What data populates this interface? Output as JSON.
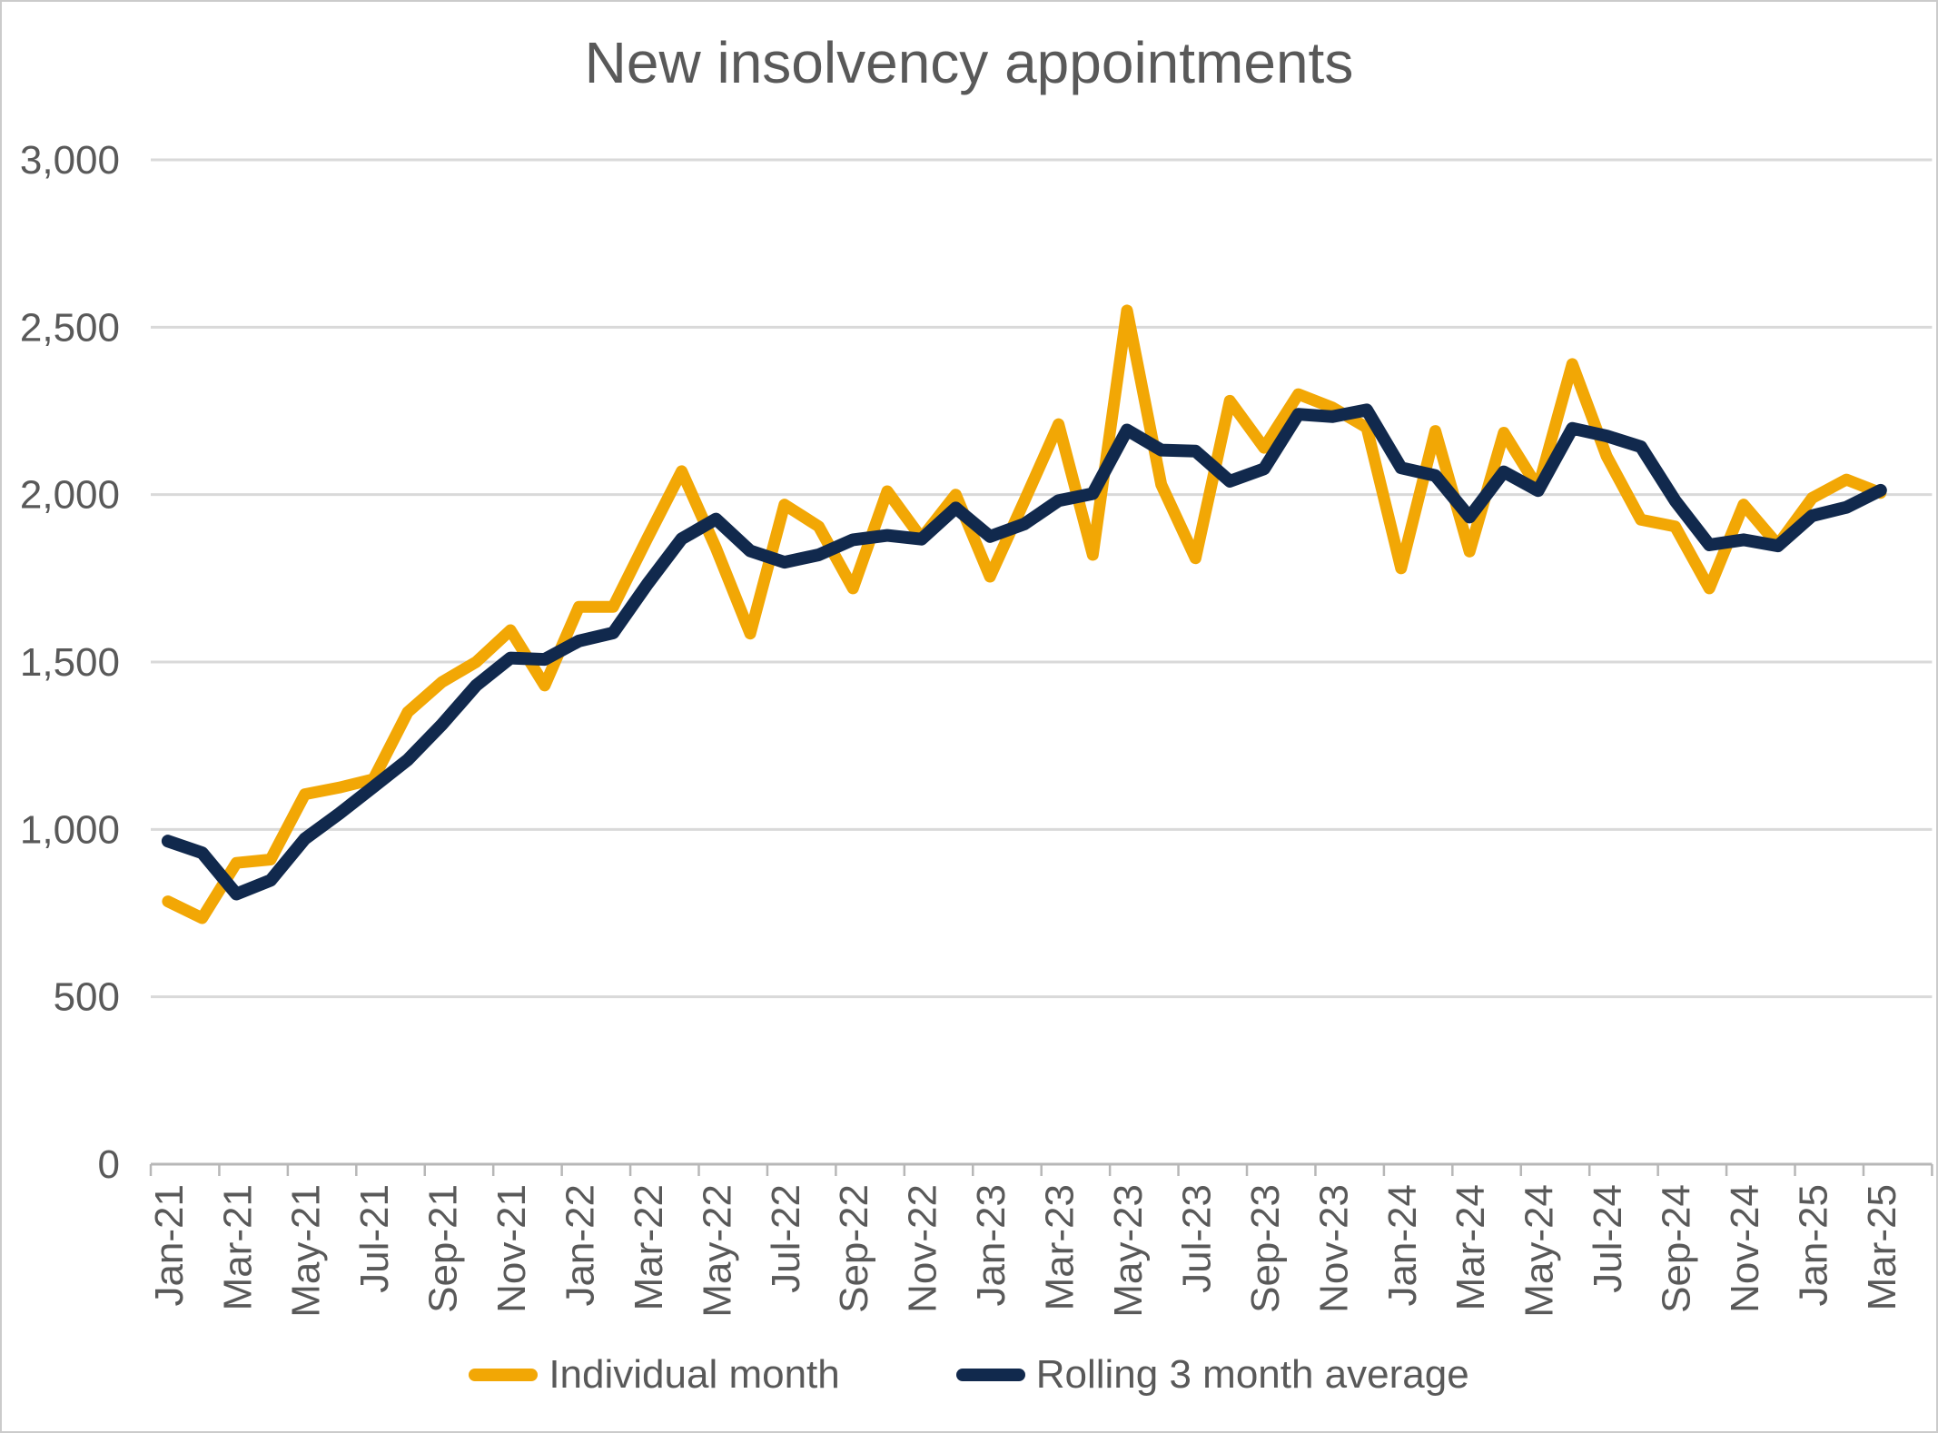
{
  "chart_data": {
    "type": "line",
    "title": "New insolvency appointments",
    "xlabel": "",
    "ylabel": "",
    "ylim": [
      0,
      3000
    ],
    "y_tick_interval": 500,
    "y_tick_labels": [
      "0",
      "500",
      "1,000",
      "1,500",
      "2,000",
      "2,500",
      "3,000"
    ],
    "x_label_every": 2,
    "grid": "horizontal",
    "legend_position": "bottom",
    "x": [
      "Jan-21",
      "Feb-21",
      "Mar-21",
      "Apr-21",
      "May-21",
      "Jun-21",
      "Jul-21",
      "Aug-21",
      "Sep-21",
      "Oct-21",
      "Nov-21",
      "Dec-21",
      "Jan-22",
      "Feb-22",
      "Mar-22",
      "Apr-22",
      "May-22",
      "Jun-22",
      "Jul-22",
      "Aug-22",
      "Sep-22",
      "Oct-22",
      "Nov-22",
      "Dec-22",
      "Jan-23",
      "Feb-23",
      "Mar-23",
      "Apr-23",
      "May-23",
      "Jun-23",
      "Jul-23",
      "Aug-23",
      "Sep-23",
      "Oct-23",
      "Nov-23",
      "Dec-23",
      "Jan-24",
      "Feb-24",
      "Mar-24",
      "Apr-24",
      "May-24",
      "Jun-24",
      "Jul-24",
      "Aug-24",
      "Sep-24",
      "Oct-24",
      "Nov-24",
      "Dec-24",
      "Jan-25",
      "Feb-25",
      "Mar-25"
    ],
    "series": [
      {
        "name": "Individual month",
        "color": "#F2A705",
        "stroke_width": 13,
        "values": [
          785,
          735,
          900,
          910,
          1105,
          1125,
          1150,
          1350,
          1440,
          1500,
          1595,
          1430,
          1665,
          1665,
          1870,
          2070,
          1840,
          1585,
          1970,
          1905,
          1720,
          2010,
          1870,
          2000,
          1755,
          1980,
          2210,
          1820,
          2550,
          2030,
          1810,
          2280,
          2140,
          2300,
          2260,
          2200,
          1780,
          2190,
          1830,
          2185,
          2020,
          2390,
          2115,
          1925,
          1905,
          1720,
          1970,
          1850,
          1990,
          2045,
          2005
        ]
      },
      {
        "name": "Rolling 3 month average",
        "color": "#11294D",
        "stroke_width": 14,
        "values": [
          965,
          930,
          807,
          848,
          972,
          1047,
          1127,
          1208,
          1313,
          1430,
          1512,
          1508,
          1563,
          1587,
          1733,
          1868,
          1927,
          1832,
          1798,
          1820,
          1865,
          1878,
          1867,
          1960,
          1875,
          1912,
          1982,
          2003,
          2193,
          2133,
          2130,
          2040,
          2077,
          2240,
          2233,
          2253,
          2080,
          2057,
          1933,
          2068,
          2012,
          2198,
          2175,
          2143,
          1982,
          1850,
          1865,
          1847,
          1937,
          1962,
          2013
        ]
      }
    ],
    "colors": {
      "text": "#595959",
      "gridline": "#D9D9D9",
      "axis": "#B7B7B7",
      "background": "#FFFFFF",
      "border": "#CBCBCB"
    }
  }
}
